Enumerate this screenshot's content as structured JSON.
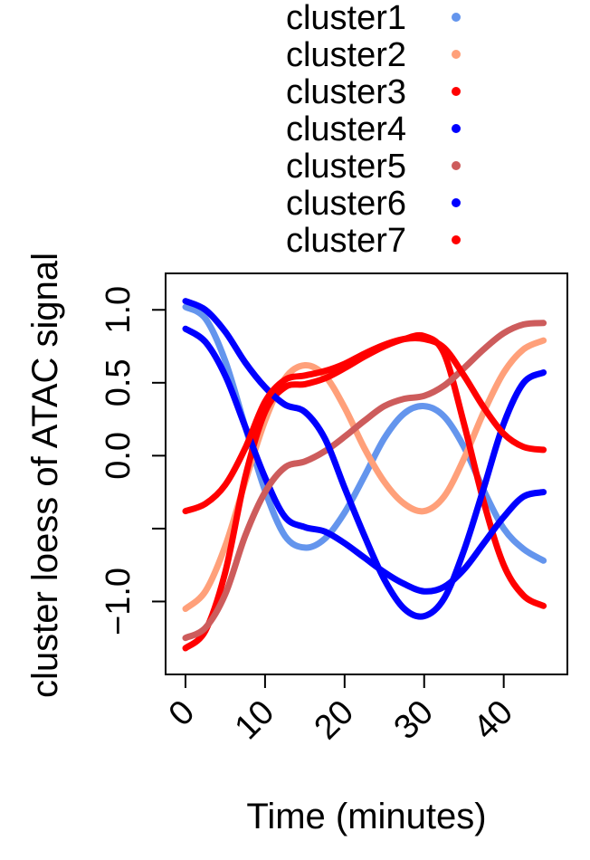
{
  "chart_data": {
    "type": "line",
    "title": "",
    "xlabel": "Time (minutes)",
    "ylabel": "cluster loess of ATAC signal",
    "xlim": [
      -2.5,
      48
    ],
    "ylim": [
      -1.5,
      1.25
    ],
    "x_ticks": [
      0,
      10,
      20,
      30,
      40
    ],
    "x_tick_labels": [
      "0",
      "10",
      "20",
      "30",
      "40"
    ],
    "y_ticks": [
      -1.0,
      -0.5,
      0.0,
      0.5,
      1.0
    ],
    "y_tick_labels": [
      "−1.0",
      "",
      "0.0",
      "0.5",
      "1.0"
    ],
    "grid": false,
    "legend_position": "top",
    "series": [
      {
        "name": "cluster1",
        "color": "#6495ED",
        "x": [
          0,
          2.5,
          5,
          7.5,
          10,
          12.5,
          15,
          17.5,
          20,
          22.5,
          25,
          27.5,
          30,
          32.5,
          35,
          37.5,
          40,
          42.5,
          45
        ],
        "y": [
          1.02,
          0.94,
          0.65,
          0.2,
          -0.24,
          -0.55,
          -0.63,
          -0.57,
          -0.39,
          -0.14,
          0.12,
          0.29,
          0.34,
          0.27,
          0.06,
          -0.24,
          -0.5,
          -0.64,
          -0.72
        ]
      },
      {
        "name": "cluster2",
        "color": "#FFA07A",
        "x": [
          0,
          2.5,
          5,
          7.5,
          10,
          12.5,
          15,
          17.5,
          20,
          22.5,
          25,
          27.5,
          30,
          32.5,
          35,
          37.5,
          40,
          42.5,
          45
        ],
        "y": [
          -1.05,
          -0.93,
          -0.62,
          -0.18,
          0.24,
          0.53,
          0.62,
          0.55,
          0.33,
          0.05,
          -0.18,
          -0.33,
          -0.38,
          -0.28,
          -0.02,
          0.3,
          0.57,
          0.73,
          0.79
        ]
      },
      {
        "name": "cluster3",
        "color": "#FF0000",
        "x": [
          0,
          2.5,
          5,
          7.5,
          10,
          12.5,
          15,
          17.5,
          20,
          22.5,
          25,
          27.5,
          30,
          32.5,
          35,
          37.5,
          40,
          42.5,
          45
        ],
        "y": [
          -1.32,
          -1.2,
          -0.8,
          -0.15,
          0.3,
          0.47,
          0.49,
          0.53,
          0.6,
          0.68,
          0.75,
          0.8,
          0.82,
          0.7,
          0.22,
          -0.32,
          -0.75,
          -0.96,
          -1.03
        ]
      },
      {
        "name": "cluster4",
        "color": "#0000FF",
        "x": [
          0,
          2.5,
          5,
          7.5,
          10,
          12.5,
          15,
          17.5,
          20,
          22.5,
          25,
          27.5,
          30,
          32.5,
          35,
          37.5,
          40,
          42.5,
          45
        ],
        "y": [
          0.87,
          0.78,
          0.55,
          0.2,
          -0.15,
          -0.42,
          -0.49,
          -0.52,
          -0.6,
          -0.7,
          -0.8,
          -0.88,
          -0.93,
          -0.9,
          -0.78,
          -0.6,
          -0.42,
          -0.28,
          -0.25
        ]
      },
      {
        "name": "cluster5",
        "color": "#CD5C5C",
        "x": [
          0,
          2.5,
          5,
          7.5,
          10,
          12.5,
          15,
          17.5,
          20,
          22.5,
          25,
          27.5,
          30,
          32.5,
          35,
          37.5,
          40,
          42.5,
          45
        ],
        "y": [
          -1.25,
          -1.18,
          -0.95,
          -0.55,
          -0.25,
          -0.08,
          -0.04,
          0.03,
          0.13,
          0.24,
          0.34,
          0.39,
          0.41,
          0.48,
          0.6,
          0.73,
          0.84,
          0.9,
          0.91
        ]
      },
      {
        "name": "cluster6",
        "color": "#0000FF",
        "x": [
          0,
          2.5,
          5,
          7.5,
          10,
          12.5,
          15,
          17.5,
          20,
          22.5,
          25,
          27.5,
          30,
          32.5,
          35,
          37.5,
          40,
          42.5,
          45
        ],
        "y": [
          1.06,
          1.0,
          0.85,
          0.64,
          0.47,
          0.35,
          0.3,
          0.12,
          -0.22,
          -0.55,
          -0.85,
          -1.05,
          -1.1,
          -0.98,
          -0.65,
          -0.22,
          0.22,
          0.5,
          0.57
        ]
      },
      {
        "name": "cluster7",
        "color": "#FF0000",
        "x": [
          0,
          2.5,
          5,
          7.5,
          10,
          12.5,
          15,
          17.5,
          20,
          22.5,
          25,
          27.5,
          30,
          32.5,
          35,
          37.5,
          40,
          42.5,
          45
        ],
        "y": [
          -0.38,
          -0.33,
          -0.2,
          0.05,
          0.37,
          0.52,
          0.55,
          0.58,
          0.63,
          0.7,
          0.76,
          0.8,
          0.8,
          0.74,
          0.55,
          0.33,
          0.15,
          0.06,
          0.04
        ]
      }
    ]
  }
}
